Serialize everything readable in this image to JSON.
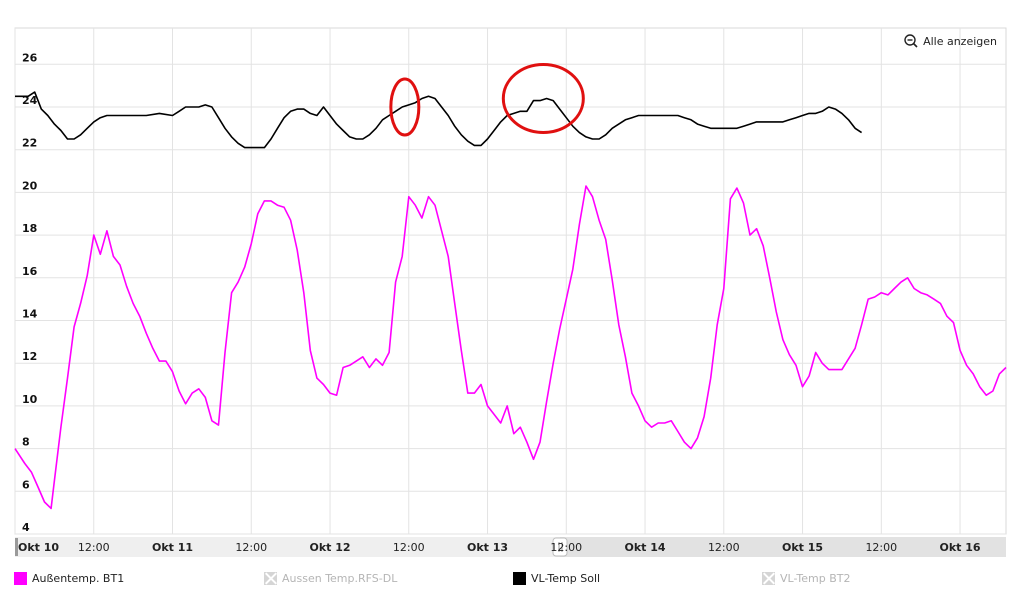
{
  "chart_data": {
    "type": "line",
    "y_ticks": [
      4,
      6,
      8,
      10,
      12,
      14,
      16,
      18,
      20,
      22,
      24,
      26
    ],
    "ylim": [
      4,
      27.7
    ],
    "x_tick_labels": [
      "Okt 10",
      "12:00",
      "Okt 11",
      "12:00",
      "Okt 12",
      "12:00",
      "Okt 13",
      "12:00",
      "Okt 14",
      "12:00",
      "Okt 15",
      "12:00",
      "Okt 16"
    ],
    "x_tick_hours": [
      0,
      12,
      24,
      36,
      48,
      60,
      72,
      84,
      96,
      108,
      120,
      132,
      144
    ],
    "xlim_hours": [
      0,
      151
    ],
    "grid": true,
    "legend_position": "bottom",
    "series": [
      {
        "name": "Außentemp. BT1",
        "color": "#ff00ff",
        "points": [
          [
            0,
            8.0
          ],
          [
            1.5,
            7.3
          ],
          [
            2.5,
            6.9
          ],
          [
            3.5,
            6.2
          ],
          [
            4.5,
            5.5
          ],
          [
            5.5,
            5.2
          ],
          [
            6,
            6.5
          ],
          [
            7,
            9.0
          ],
          [
            8,
            11.3
          ],
          [
            9,
            13.7
          ],
          [
            10,
            14.8
          ],
          [
            11,
            16.1
          ],
          [
            12,
            18.0
          ],
          [
            13,
            17.1
          ],
          [
            14,
            18.2
          ],
          [
            15,
            17.0
          ],
          [
            16,
            16.6
          ],
          [
            17,
            15.6
          ],
          [
            18,
            14.8
          ],
          [
            19,
            14.2
          ],
          [
            20,
            13.4
          ],
          [
            21,
            12.7
          ],
          [
            22,
            12.1
          ],
          [
            23,
            12.1
          ],
          [
            24,
            11.6
          ],
          [
            25,
            10.7
          ],
          [
            26,
            10.1
          ],
          [
            27,
            10.6
          ],
          [
            28,
            10.8
          ],
          [
            29,
            10.4
          ],
          [
            30,
            9.3
          ],
          [
            31,
            9.1
          ],
          [
            32,
            12.5
          ],
          [
            33,
            15.3
          ],
          [
            34,
            15.8
          ],
          [
            35,
            16.5
          ],
          [
            36,
            17.6
          ],
          [
            37,
            19.0
          ],
          [
            38,
            19.6
          ],
          [
            39,
            19.6
          ],
          [
            40,
            19.4
          ],
          [
            41,
            19.3
          ],
          [
            42,
            18.7
          ],
          [
            43,
            17.3
          ],
          [
            44,
            15.3
          ],
          [
            45,
            12.6
          ],
          [
            46,
            11.3
          ],
          [
            47,
            11.0
          ],
          [
            48,
            10.6
          ],
          [
            49,
            10.5
          ],
          [
            50,
            11.8
          ],
          [
            51,
            11.9
          ],
          [
            52,
            12.1
          ],
          [
            53,
            12.3
          ],
          [
            54,
            11.8
          ],
          [
            55,
            12.2
          ],
          [
            56,
            11.9
          ],
          [
            57,
            12.5
          ],
          [
            58,
            15.8
          ],
          [
            59,
            17.0
          ],
          [
            60,
            19.8
          ],
          [
            61,
            19.4
          ],
          [
            62,
            18.8
          ],
          [
            63,
            19.8
          ],
          [
            64,
            19.4
          ],
          [
            65,
            18.2
          ],
          [
            66,
            17.0
          ],
          [
            67,
            14.8
          ],
          [
            68,
            12.6
          ],
          [
            69,
            10.6
          ],
          [
            70,
            10.6
          ],
          [
            71,
            11.0
          ],
          [
            72,
            10.0
          ],
          [
            73,
            9.6
          ],
          [
            74,
            9.2
          ],
          [
            75,
            10.0
          ],
          [
            76,
            8.7
          ],
          [
            77,
            9.0
          ],
          [
            78,
            8.3
          ],
          [
            79,
            7.5
          ],
          [
            80,
            8.3
          ],
          [
            81,
            10.2
          ],
          [
            82,
            12.0
          ],
          [
            83,
            13.6
          ],
          [
            84,
            15.0
          ],
          [
            85,
            16.4
          ],
          [
            86,
            18.5
          ],
          [
            87,
            20.3
          ],
          [
            88,
            19.8
          ],
          [
            89,
            18.7
          ],
          [
            90,
            17.8
          ],
          [
            91,
            15.9
          ],
          [
            92,
            13.8
          ],
          [
            93,
            12.3
          ],
          [
            94,
            10.6
          ],
          [
            95,
            10.0
          ],
          [
            96,
            9.3
          ],
          [
            97,
            9.0
          ],
          [
            98,
            9.2
          ],
          [
            99,
            9.2
          ],
          [
            100,
            9.3
          ],
          [
            101,
            8.8
          ],
          [
            102,
            8.3
          ],
          [
            103,
            8.0
          ],
          [
            104,
            8.5
          ],
          [
            105,
            9.5
          ],
          [
            106,
            11.3
          ],
          [
            107,
            13.8
          ],
          [
            108,
            15.5
          ],
          [
            109,
            19.7
          ],
          [
            110,
            20.2
          ],
          [
            111,
            19.5
          ],
          [
            112,
            18.0
          ],
          [
            113,
            18.3
          ],
          [
            114,
            17.5
          ],
          [
            115,
            16.0
          ],
          [
            116,
            14.4
          ],
          [
            117,
            13.1
          ],
          [
            118,
            12.4
          ],
          [
            119,
            11.9
          ],
          [
            120,
            10.9
          ],
          [
            121,
            11.4
          ],
          [
            122,
            12.5
          ],
          [
            123,
            12.0
          ],
          [
            124,
            11.7
          ],
          [
            125,
            11.7
          ],
          [
            126,
            11.7
          ],
          [
            127,
            12.2
          ],
          [
            128,
            12.7
          ],
          [
            129,
            13.8
          ],
          [
            130,
            15.0
          ],
          [
            131,
            15.1
          ],
          [
            132,
            15.3
          ],
          [
            133,
            15.2
          ],
          [
            134,
            15.5
          ],
          [
            135,
            15.8
          ],
          [
            136,
            16.0
          ],
          [
            137,
            15.5
          ],
          [
            138,
            15.3
          ],
          [
            139,
            15.2
          ],
          [
            140,
            15.0
          ],
          [
            141,
            14.8
          ],
          [
            142,
            14.2
          ],
          [
            143,
            13.9
          ],
          [
            144,
            12.6
          ],
          [
            145,
            11.9
          ],
          [
            146,
            11.5
          ],
          [
            147,
            10.9
          ],
          [
            148,
            10.5
          ],
          [
            149,
            10.7
          ],
          [
            150,
            11.5
          ],
          [
            151,
            11.8
          ]
        ]
      },
      {
        "name": "VL-Temp Soll",
        "color": "#000000",
        "points": [
          [
            0,
            24.5
          ],
          [
            2,
            24.5
          ],
          [
            3,
            24.7
          ],
          [
            4,
            23.9
          ],
          [
            5,
            23.6
          ],
          [
            6,
            23.2
          ],
          [
            7,
            22.9
          ],
          [
            8,
            22.5
          ],
          [
            9,
            22.5
          ],
          [
            10,
            22.7
          ],
          [
            11,
            23.0
          ],
          [
            12,
            23.3
          ],
          [
            13,
            23.5
          ],
          [
            14,
            23.6
          ],
          [
            16,
            23.6
          ],
          [
            18,
            23.6
          ],
          [
            20,
            23.6
          ],
          [
            22,
            23.7
          ],
          [
            24,
            23.6
          ],
          [
            25,
            23.8
          ],
          [
            26,
            24.0
          ],
          [
            28,
            24.0
          ],
          [
            29,
            24.1
          ],
          [
            30,
            24.0
          ],
          [
            31,
            23.5
          ],
          [
            32,
            23.0
          ],
          [
            33,
            22.6
          ],
          [
            34,
            22.3
          ],
          [
            35,
            22.1
          ],
          [
            36,
            22.1
          ],
          [
            38,
            22.1
          ],
          [
            39,
            22.5
          ],
          [
            40,
            23.0
          ],
          [
            41,
            23.5
          ],
          [
            42,
            23.8
          ],
          [
            43,
            23.9
          ],
          [
            44,
            23.9
          ],
          [
            45,
            23.7
          ],
          [
            46,
            23.6
          ],
          [
            47,
            24.0
          ],
          [
            48,
            23.6
          ],
          [
            49,
            23.2
          ],
          [
            50,
            22.9
          ],
          [
            51,
            22.6
          ],
          [
            52,
            22.5
          ],
          [
            53,
            22.5
          ],
          [
            54,
            22.7
          ],
          [
            55,
            23.0
          ],
          [
            56,
            23.4
          ],
          [
            57,
            23.6
          ],
          [
            58,
            23.8
          ],
          [
            59,
            24.0
          ],
          [
            60,
            24.1
          ],
          [
            61,
            24.2
          ],
          [
            62,
            24.4
          ],
          [
            63,
            24.5
          ],
          [
            64,
            24.4
          ],
          [
            65,
            24.0
          ],
          [
            66,
            23.6
          ],
          [
            67,
            23.1
          ],
          [
            68,
            22.7
          ],
          [
            69,
            22.4
          ],
          [
            70,
            22.2
          ],
          [
            71,
            22.2
          ],
          [
            72,
            22.5
          ],
          [
            73,
            22.9
          ],
          [
            74,
            23.3
          ],
          [
            75,
            23.6
          ],
          [
            76,
            23.7
          ],
          [
            77,
            23.8
          ],
          [
            78,
            23.8
          ],
          [
            79,
            24.3
          ],
          [
            80,
            24.3
          ],
          [
            81,
            24.4
          ],
          [
            82,
            24.3
          ],
          [
            83,
            23.9
          ],
          [
            84,
            23.5
          ],
          [
            85,
            23.1
          ],
          [
            86,
            22.8
          ],
          [
            87,
            22.6
          ],
          [
            88,
            22.5
          ],
          [
            89,
            22.5
          ],
          [
            90,
            22.7
          ],
          [
            91,
            23.0
          ],
          [
            92,
            23.2
          ],
          [
            93,
            23.4
          ],
          [
            94,
            23.5
          ],
          [
            95,
            23.6
          ],
          [
            96,
            23.6
          ],
          [
            97,
            23.6
          ],
          [
            98,
            23.6
          ],
          [
            99,
            23.6
          ],
          [
            100,
            23.6
          ],
          [
            101,
            23.6
          ],
          [
            102,
            23.5
          ],
          [
            103,
            23.4
          ],
          [
            104,
            23.2
          ],
          [
            105,
            23.1
          ],
          [
            106,
            23.0
          ],
          [
            107,
            23.0
          ],
          [
            108,
            23.0
          ],
          [
            109,
            23.0
          ],
          [
            110,
            23.0
          ],
          [
            111,
            23.1
          ],
          [
            112,
            23.2
          ],
          [
            113,
            23.3
          ],
          [
            114,
            23.3
          ],
          [
            115,
            23.3
          ],
          [
            116,
            23.3
          ],
          [
            117,
            23.3
          ],
          [
            118,
            23.4
          ],
          [
            119,
            23.5
          ],
          [
            120,
            23.6
          ],
          [
            121,
            23.7
          ],
          [
            122,
            23.7
          ],
          [
            123,
            23.8
          ],
          [
            124,
            24.0
          ],
          [
            125,
            23.9
          ],
          [
            126,
            23.7
          ],
          [
            127,
            23.4
          ],
          [
            128,
            23.0
          ],
          [
            129,
            22.8
          ]
        ]
      }
    ],
    "disabled_series": [
      "Aussen Temp.RFS-DL",
      "VL-Temp BT2"
    ]
  },
  "controls": {
    "zoom_reset_label": "Alle anzeigen"
  },
  "legend": {
    "items": [
      {
        "label": "Außentemp. BT1",
        "color": "#ff00ff",
        "enabled": true
      },
      {
        "label": "Aussen Temp.RFS-DL",
        "color": "#d5d5d5",
        "enabled": false
      },
      {
        "label": "VL-Temp Soll",
        "color": "#000000",
        "enabled": true
      },
      {
        "label": "VL-Temp BT2",
        "color": "#d5d5d5",
        "enabled": false
      }
    ]
  },
  "annotations": [
    {
      "type": "ellipse",
      "color": "#e01010",
      "at_hour": 59.4,
      "at_value": 24.0
    },
    {
      "type": "ellipse",
      "color": "#e01010",
      "at_hour": 80.5,
      "at_value": 24.4
    }
  ]
}
